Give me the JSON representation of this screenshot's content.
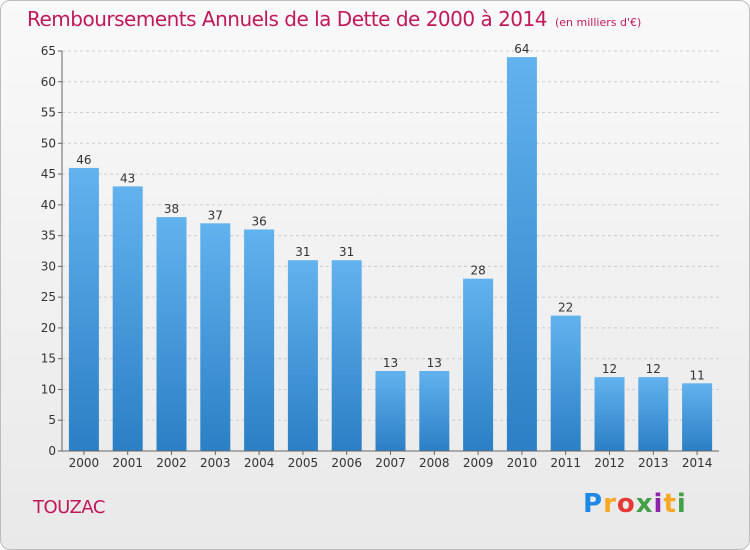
{
  "page": {
    "title": "Remboursements Annuels de la Dette de 2000 à 2014",
    "subtitle": "(en milliers d'€)",
    "commune": "TOUZAC",
    "brand": "Proxiti"
  },
  "colors": {
    "title": "#c2185b",
    "bar_top": "#62b2ee",
    "bar_bottom": "#2b7fc4",
    "grid": "#cccccc",
    "axis": "#666666"
  },
  "chart_data": {
    "type": "bar",
    "title": "Remboursements Annuels de la Dette de 2000 à 2014",
    "subtitle": "(en milliers d'€)",
    "xlabel": "",
    "ylabel": "",
    "categories": [
      "2000",
      "2001",
      "2002",
      "2003",
      "2004",
      "2005",
      "2006",
      "2007",
      "2008",
      "2009",
      "2010",
      "2011",
      "2012",
      "2013",
      "2014"
    ],
    "values": [
      46,
      43,
      38,
      37,
      36,
      31,
      31,
      13,
      13,
      28,
      64,
      22,
      12,
      12,
      11
    ],
    "ylim": [
      0,
      65
    ],
    "yticks": [
      0,
      5,
      10,
      15,
      20,
      25,
      30,
      35,
      40,
      45,
      50,
      55,
      60,
      65
    ],
    "grid": true,
    "legend": "none"
  }
}
